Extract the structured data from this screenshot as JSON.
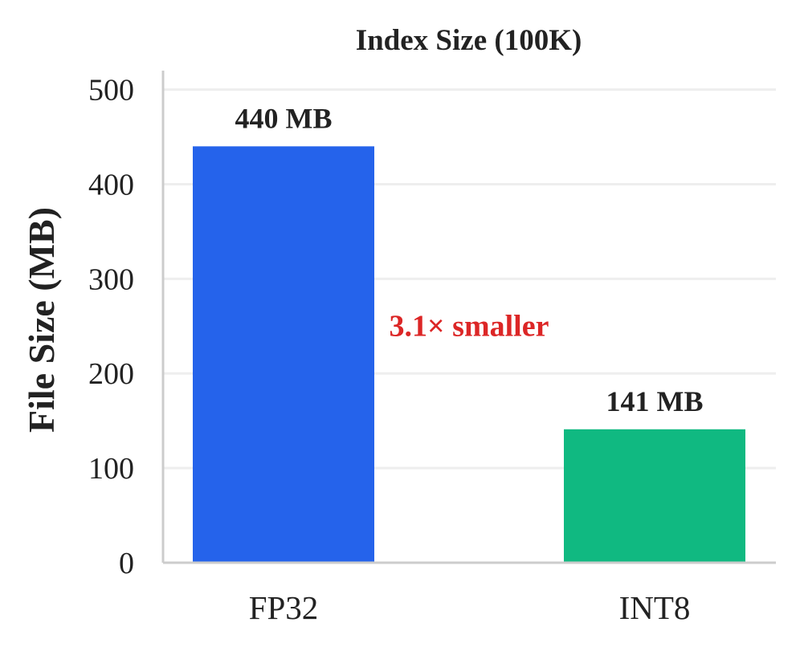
{
  "chart_data": {
    "type": "bar",
    "title": "Index Size (100K)",
    "xlabel": "",
    "ylabel": "File Size (MB)",
    "categories": [
      "FP32",
      "INT8"
    ],
    "values": [
      440,
      141
    ],
    "data_labels": [
      "440 MB",
      "141 MB"
    ],
    "colors": [
      "#2563eb",
      "#10b981"
    ],
    "ylim": [
      0,
      520
    ],
    "yticks": [
      0,
      100,
      200,
      300,
      400,
      500
    ],
    "grid": true,
    "annotation": {
      "text": "3.1× smaller",
      "color": "#dc2626",
      "y": 250
    }
  }
}
